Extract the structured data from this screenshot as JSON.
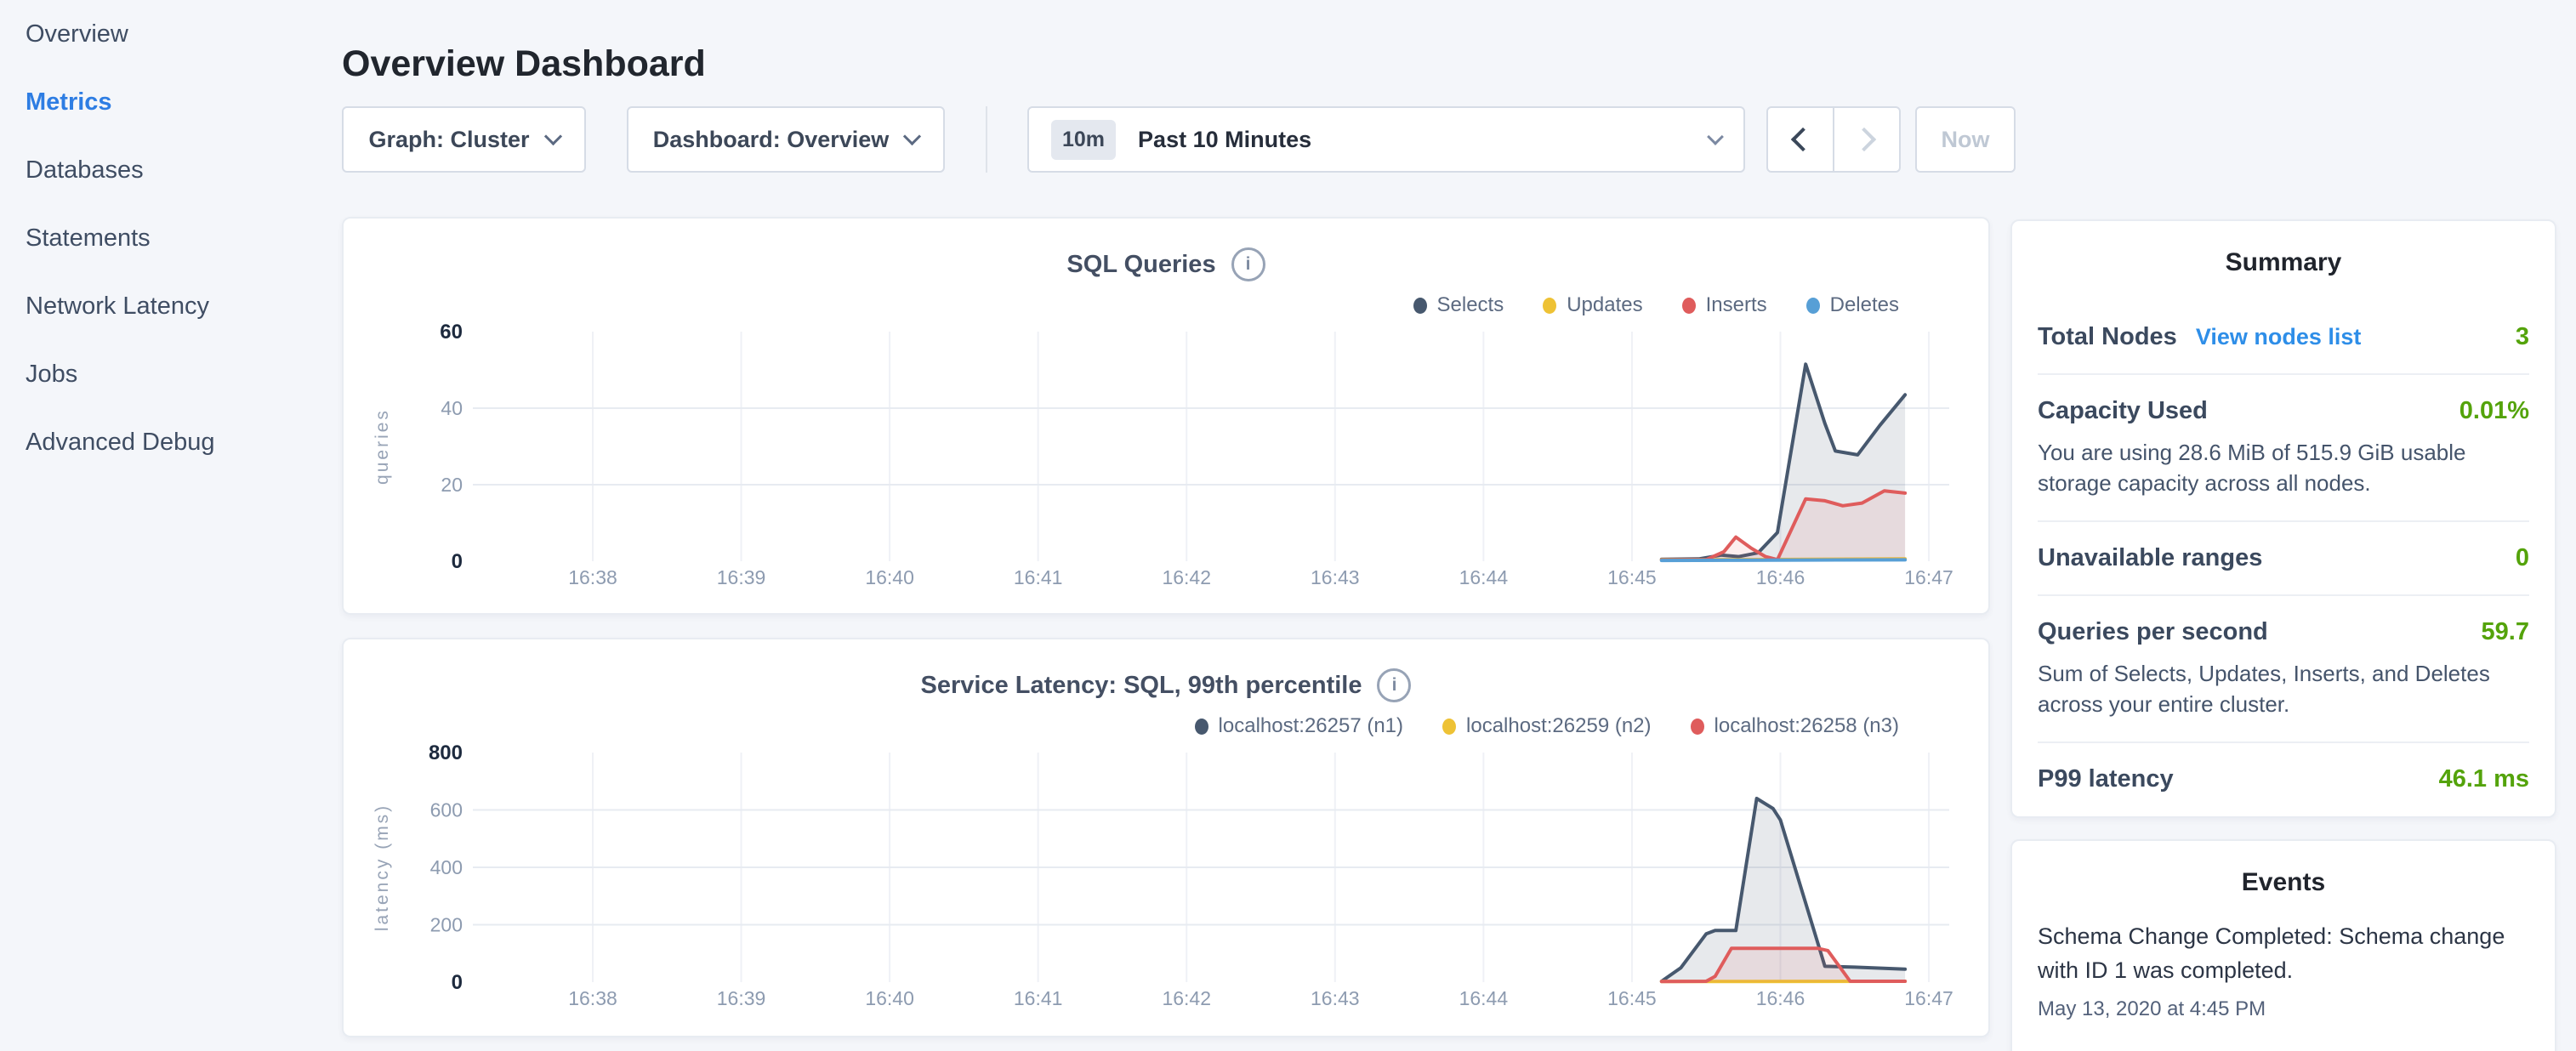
{
  "sidebar": {
    "items": [
      {
        "label": "Overview",
        "active": false
      },
      {
        "label": "Metrics",
        "active": true
      },
      {
        "label": "Databases",
        "active": false
      },
      {
        "label": "Statements",
        "active": false
      },
      {
        "label": "Network Latency",
        "active": false
      },
      {
        "label": "Jobs",
        "active": false
      },
      {
        "label": "Advanced Debug",
        "active": false
      }
    ]
  },
  "header": {
    "title": "Overview Dashboard"
  },
  "controls": {
    "graph_dropdown": "Graph: Cluster",
    "dashboard_dropdown": "Dashboard: Overview",
    "time_range_badge": "10m",
    "time_range_label": "Past 10 Minutes",
    "now_label": "Now"
  },
  "chart_data": [
    {
      "type": "line",
      "title": "SQL Queries",
      "ylabel": "queries",
      "xlabel": "",
      "x_note": "x values are minutes after 16:38",
      "x_tick_labels": [
        "16:38",
        "16:39",
        "16:40",
        "16:41",
        "16:42",
        "16:43",
        "16:44",
        "16:45",
        "16:46",
        "16:47"
      ],
      "ylim": [
        0,
        60
      ],
      "y_ticks": [
        0,
        20,
        40,
        60
      ],
      "grid_y": [
        20,
        40
      ],
      "legend_position": "top-right",
      "series": [
        {
          "name": "Selects",
          "color": "#47586e",
          "fill": "rgba(71,88,110,0.13)",
          "points": [
            [
              7.2,
              0.5
            ],
            [
              7.45,
              0.6
            ],
            [
              7.6,
              1.6
            ],
            [
              7.72,
              1.2
            ],
            [
              7.85,
              2.2
            ],
            [
              7.98,
              7.5
            ],
            [
              8.17,
              51.5
            ],
            [
              8.3,
              36
            ],
            [
              8.37,
              28.8
            ],
            [
              8.52,
              27.8
            ],
            [
              8.67,
              35.5
            ],
            [
              8.84,
              43.5
            ]
          ]
        },
        {
          "name": "Updates",
          "color": "#eec235",
          "fill": "rgba(238,194,53,0.08)",
          "points": [
            [
              7.2,
              0.4
            ],
            [
              7.7,
              0.4
            ],
            [
              8.2,
              0.5
            ],
            [
              8.84,
              0.6
            ]
          ]
        },
        {
          "name": "Inserts",
          "color": "#df5c5c",
          "fill": "rgba(223,92,92,0.10)",
          "points": [
            [
              7.2,
              0.3
            ],
            [
              7.5,
              0.4
            ],
            [
              7.62,
              2.5
            ],
            [
              7.7,
              6.3
            ],
            [
              7.8,
              3.5
            ],
            [
              7.9,
              1.2
            ],
            [
              7.98,
              0.4
            ],
            [
              8.17,
              16.3
            ],
            [
              8.3,
              15.8
            ],
            [
              8.42,
              14.5
            ],
            [
              8.55,
              15.2
            ],
            [
              8.7,
              18.4
            ],
            [
              8.84,
              17.8
            ]
          ]
        },
        {
          "name": "Deletes",
          "color": "#579fd6",
          "fill": "rgba(87,159,214,0.08)",
          "points": [
            [
              7.2,
              0.2
            ],
            [
              7.7,
              0.25
            ],
            [
              8.2,
              0.3
            ],
            [
              8.84,
              0.35
            ]
          ]
        }
      ]
    },
    {
      "type": "line",
      "title": "Service Latency: SQL, 99th percentile",
      "ylabel": "latency (ms)",
      "xlabel": "",
      "x_note": "x values are minutes after 16:38",
      "x_tick_labels": [
        "16:38",
        "16:39",
        "16:40",
        "16:41",
        "16:42",
        "16:43",
        "16:44",
        "16:45",
        "16:46",
        "16:47"
      ],
      "ylim": [
        0,
        800
      ],
      "y_ticks": [
        0,
        200,
        400,
        600,
        800
      ],
      "grid_y": [
        200,
        400,
        600
      ],
      "legend_position": "top-right",
      "series": [
        {
          "name": "localhost:26257 (n1)",
          "color": "#47586e",
          "fill": "rgba(71,88,110,0.13)",
          "points": [
            [
              7.2,
              3
            ],
            [
              7.33,
              50
            ],
            [
              7.5,
              168
            ],
            [
              7.56,
              180
            ],
            [
              7.7,
              180
            ],
            [
              7.84,
              640
            ],
            [
              7.95,
              605
            ],
            [
              8.0,
              565
            ],
            [
              8.3,
              55
            ],
            [
              8.5,
              52
            ],
            [
              8.84,
              45
            ]
          ]
        },
        {
          "name": "localhost:26259 (n2)",
          "color": "#eec235",
          "fill": "rgba(238,194,53,0.08)",
          "points": [
            [
              7.2,
              2
            ],
            [
              7.8,
              2.5
            ],
            [
              8.84,
              3
            ]
          ]
        },
        {
          "name": "localhost:26258 (n3)",
          "color": "#df5c5c",
          "fill": "rgba(223,92,92,0.10)",
          "points": [
            [
              7.2,
              2
            ],
            [
              7.5,
              3
            ],
            [
              7.56,
              20
            ],
            [
              7.67,
              118
            ],
            [
              8.25,
              118
            ],
            [
              8.32,
              110
            ],
            [
              8.47,
              3
            ],
            [
              8.84,
              3
            ]
          ]
        }
      ]
    }
  ],
  "summary": {
    "title": "Summary",
    "rows": [
      {
        "label": "Total Nodes",
        "link": "View nodes list",
        "value": "3"
      },
      {
        "label": "Capacity Used",
        "value": "0.01%",
        "desc": "You are using 28.6 MiB of 515.9 GiB usable storage capacity across all nodes."
      },
      {
        "label": "Unavailable ranges",
        "value": "0"
      },
      {
        "label": "Queries per second",
        "value": "59.7",
        "desc": "Sum of Selects, Updates, Inserts, and Deletes across your entire cluster."
      },
      {
        "label": "P99 latency",
        "value": "46.1 ms"
      }
    ]
  },
  "events": {
    "title": "Events",
    "items": [
      {
        "text": "Schema Change Completed: Schema change with ID 1 was completed.",
        "time": "May 13, 2020 at 4:45 PM"
      }
    ]
  }
}
